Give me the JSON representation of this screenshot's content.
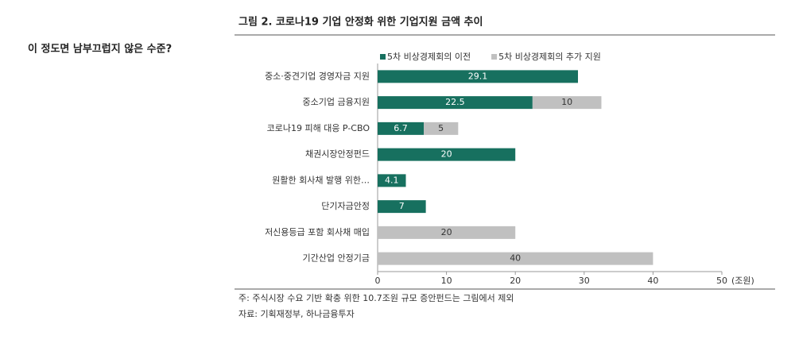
{
  "heading": "이 정도면 남부끄럽지 않은 수준?",
  "chart_data": {
    "type": "bar",
    "orientation": "horizontal",
    "stacked": true,
    "title": "그림 2. 코로나19 기업 안정화 위한 기업지원 금액 추이",
    "categories": [
      "중소·중견기업 경영자금 지원",
      "중소기업 금융지원",
      "코로나19 피해 대응 P-CBO",
      "채권시장안정펀드",
      "원활한 회사채 발행 위한…",
      "단기자금안정",
      "저신용등급 포함 회사채 매입",
      "기간산업 안정기금"
    ],
    "series": [
      {
        "name": "5차 비상경제회의 이전",
        "color": "#17705f",
        "values": [
          29.1,
          22.5,
          6.7,
          20,
          4.1,
          7,
          null,
          null
        ]
      },
      {
        "name": "5차 비상경제회의 추가 지원",
        "color": "#c0c0c0",
        "values": [
          null,
          10,
          5,
          null,
          null,
          null,
          20,
          40
        ]
      }
    ],
    "xlim": [
      0,
      50
    ],
    "xticks": [
      0,
      10,
      20,
      30,
      40,
      50
    ],
    "xlabel": "(조원)",
    "legend": "top"
  },
  "notes": [
    "주: 주식시장 수요 기반 확충 위한 10.7조원 규모 증안펀드는 그림에서 제외",
    "자료: 기획재정부, 하나금융투자"
  ]
}
